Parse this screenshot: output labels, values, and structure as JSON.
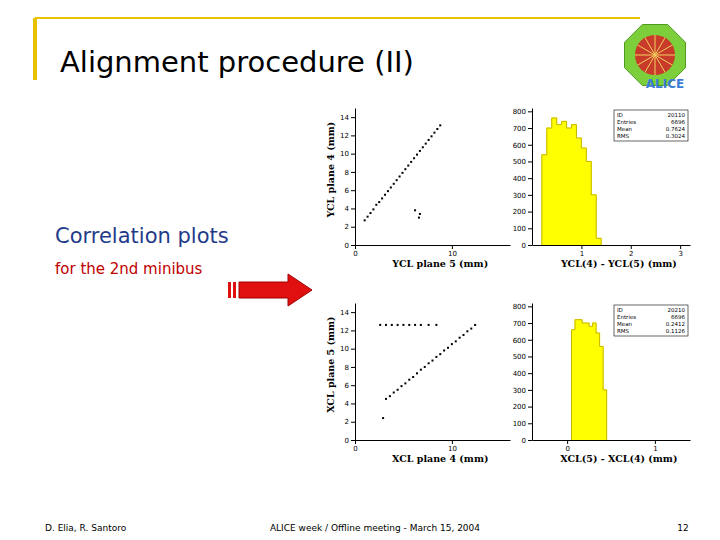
{
  "slide": {
    "title": "Alignment procedure (II)",
    "subtitle": "Correlation plots",
    "note": "for the 2nd minibus",
    "logo": "ALICE"
  },
  "footer": {
    "authors": "D. Elia, R. Santoro",
    "event": "ALICE week / Offline meeting - March 15, 2004",
    "page": "12"
  },
  "chart_data": [
    {
      "type": "scatter",
      "x_label": "YCL plane 5 (mm)",
      "y_label": "YCL plane 4 (mm)",
      "color": "#000000",
      "marker": "square",
      "x": [
        1.0,
        1.3,
        1.6,
        1.9,
        2.2,
        2.5,
        2.8,
        3.1,
        3.4,
        3.7,
        4.0,
        4.3,
        4.6,
        4.9,
        5.2,
        5.5,
        5.8,
        6.1,
        6.4,
        6.7,
        7.0,
        7.3,
        7.6,
        7.9,
        8.2,
        8.5,
        8.8,
        6.2,
        6.7,
        6.6
      ],
      "y": [
        2.7,
        3.1,
        3.5,
        3.9,
        4.4,
        4.7,
        5.1,
        5.5,
        5.9,
        6.3,
        6.7,
        7.1,
        7.5,
        7.9,
        8.3,
        8.7,
        9.1,
        9.5,
        9.9,
        10.3,
        10.7,
        11.1,
        11.5,
        11.9,
        12.3,
        12.7,
        13.1,
        3.8,
        3.4,
        3.0
      ],
      "xlim": [
        0,
        16
      ],
      "ylim": [
        0,
        15
      ],
      "xticks": [
        0,
        10
      ],
      "yticks": [
        0,
        2,
        4,
        6,
        8,
        10,
        12,
        14
      ]
    },
    {
      "type": "histogram",
      "x_label": "YCL(4) - YCL(5)  (mm)",
      "color": "#ffff00",
      "bins": [
        0.2,
        0.3,
        0.4,
        0.5,
        0.6,
        0.7,
        0.8,
        0.9,
        1.0,
        1.1,
        1.2,
        1.3,
        1.4
      ],
      "values": [
        540,
        700,
        760,
        720,
        740,
        700,
        720,
        640,
        580,
        500,
        300,
        40
      ],
      "xlim": [
        0,
        3.2
      ],
      "ylim": [
        0,
        820
      ],
      "xticks": [
        1,
        2,
        3
      ],
      "yticks": [
        0,
        100,
        200,
        300,
        400,
        500,
        600,
        700,
        800
      ],
      "stats": {
        "labels": [
          "ID",
          "Entries",
          "Mean",
          "RMS"
        ],
        "values": [
          20110,
          6696,
          0.7624,
          0.3024
        ]
      }
    },
    {
      "type": "scatter",
      "x_label": "XCL plane 4 (mm)",
      "y_label": "XCL plane 5 (mm)",
      "color": "#000000",
      "marker": "square",
      "x": [
        3.2,
        3.6,
        4.0,
        4.4,
        4.8,
        5.2,
        5.6,
        6.0,
        6.4,
        6.8,
        7.2,
        7.6,
        8.0,
        8.4,
        8.8,
        9.2,
        9.6,
        10.0,
        10.4,
        10.8,
        11.2,
        11.6,
        12.0,
        12.4,
        2.6,
        3.2,
        3.8,
        4.4,
        5.0,
        5.6,
        6.2,
        6.8,
        7.6,
        8.4,
        2.9
      ],
      "y": [
        4.5,
        4.8,
        5.2,
        5.5,
        5.9,
        6.2,
        6.6,
        6.9,
        7.3,
        7.7,
        8.0,
        8.4,
        8.7,
        9.1,
        9.4,
        9.8,
        10.1,
        10.5,
        10.8,
        11.2,
        11.5,
        11.9,
        12.2,
        12.6,
        12.6,
        12.6,
        12.6,
        12.6,
        12.6,
        12.6,
        12.6,
        12.6,
        12.6,
        12.6,
        2.4
      ],
      "xlim": [
        0,
        16
      ],
      "ylim": [
        0,
        15
      ],
      "xticks": [
        0,
        10
      ],
      "yticks": [
        0,
        2,
        4,
        6,
        8,
        10,
        12,
        14
      ]
    },
    {
      "type": "histogram",
      "x_label": "XCL(5) - XCL(4)  (mm)",
      "color": "#ffff00",
      "bins": [
        0.05,
        0.09,
        0.13,
        0.17,
        0.21,
        0.25,
        0.29,
        0.33,
        0.37,
        0.41,
        0.45
      ],
      "values": [
        660,
        720,
        720,
        700,
        700,
        680,
        700,
        640,
        560,
        300
      ],
      "xlim": [
        -0.4,
        1.4
      ],
      "ylim": [
        0,
        820
      ],
      "xticks": [
        0,
        1
      ],
      "yticks": [
        0,
        100,
        200,
        300,
        400,
        500,
        600,
        700,
        800
      ],
      "stats": {
        "labels": [
          "ID",
          "Entries",
          "Mean",
          "RMS"
        ],
        "values": [
          20210,
          6696,
          0.2412,
          0.1126
        ]
      }
    }
  ]
}
